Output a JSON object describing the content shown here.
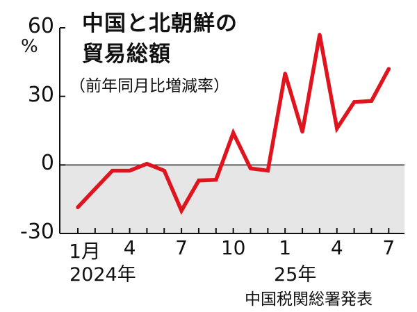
{
  "chart_data": {
    "type": "line",
    "title_line1": "中国と北朝鮮の",
    "title_line2": "貿易総額",
    "subtitle": "（前年同月比増減率）",
    "y_unit": "%",
    "ylim": [
      -30,
      60
    ],
    "yticks": [
      "60",
      "30",
      "0",
      "-30"
    ],
    "ytick_values": [
      60,
      30,
      0,
      -30
    ],
    "x_tick_labels": [
      {
        "index": 0,
        "label": "1月"
      },
      {
        "index": 3,
        "label": "4"
      },
      {
        "index": 6,
        "label": "7"
      },
      {
        "index": 9,
        "label": "10"
      },
      {
        "index": 12,
        "label": "1"
      },
      {
        "index": 15,
        "label": "4"
      },
      {
        "index": 18,
        "label": "7"
      }
    ],
    "year_labels": [
      {
        "index": 0,
        "label": "2024年"
      },
      {
        "index": 12,
        "label": "25年"
      }
    ],
    "x": [
      "2024-01",
      "2024-02",
      "2024-03",
      "2024-04",
      "2024-05",
      "2024-06",
      "2024-07",
      "2024-08",
      "2024-09",
      "2024-10",
      "2024-11",
      "2024-12",
      "2025-01",
      "2025-02",
      "2025-03",
      "2025-04",
      "2025-05",
      "2025-06",
      "2025-07"
    ],
    "values": [
      -18.5,
      -10.5,
      -2.5,
      -2.5,
      0.5,
      -2.5,
      -20,
      -6.8,
      -6.5,
      14,
      -1.5,
      -2.5,
      40,
      14.5,
      57,
      16,
      27.5,
      28,
      42
    ],
    "line_color": "#e0141e",
    "negative_band_color": "#e6e6e6",
    "source": "中国税関総署発表"
  }
}
